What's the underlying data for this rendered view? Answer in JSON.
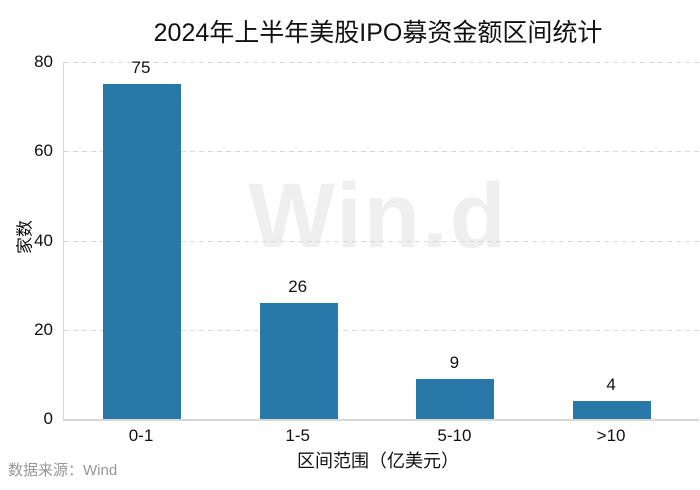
{
  "chart_data": {
    "type": "bar",
    "title": "2024年上半年美股IPO募资金额区间统计",
    "categories": [
      "0-1",
      "1-5",
      "5-10",
      ">10"
    ],
    "values": [
      75,
      26,
      9,
      4
    ],
    "xlabel": "区间范围（亿美元）",
    "ylabel": "家数",
    "ylim": [
      0,
      80
    ],
    "yticks": [
      0,
      20,
      40,
      60,
      80
    ],
    "grid": "horizontal-dashed",
    "legend": "none",
    "bar_color": "#2878a8",
    "value_labels_shown": true,
    "watermark": "Win.d",
    "source": "数据来源：Wind"
  }
}
